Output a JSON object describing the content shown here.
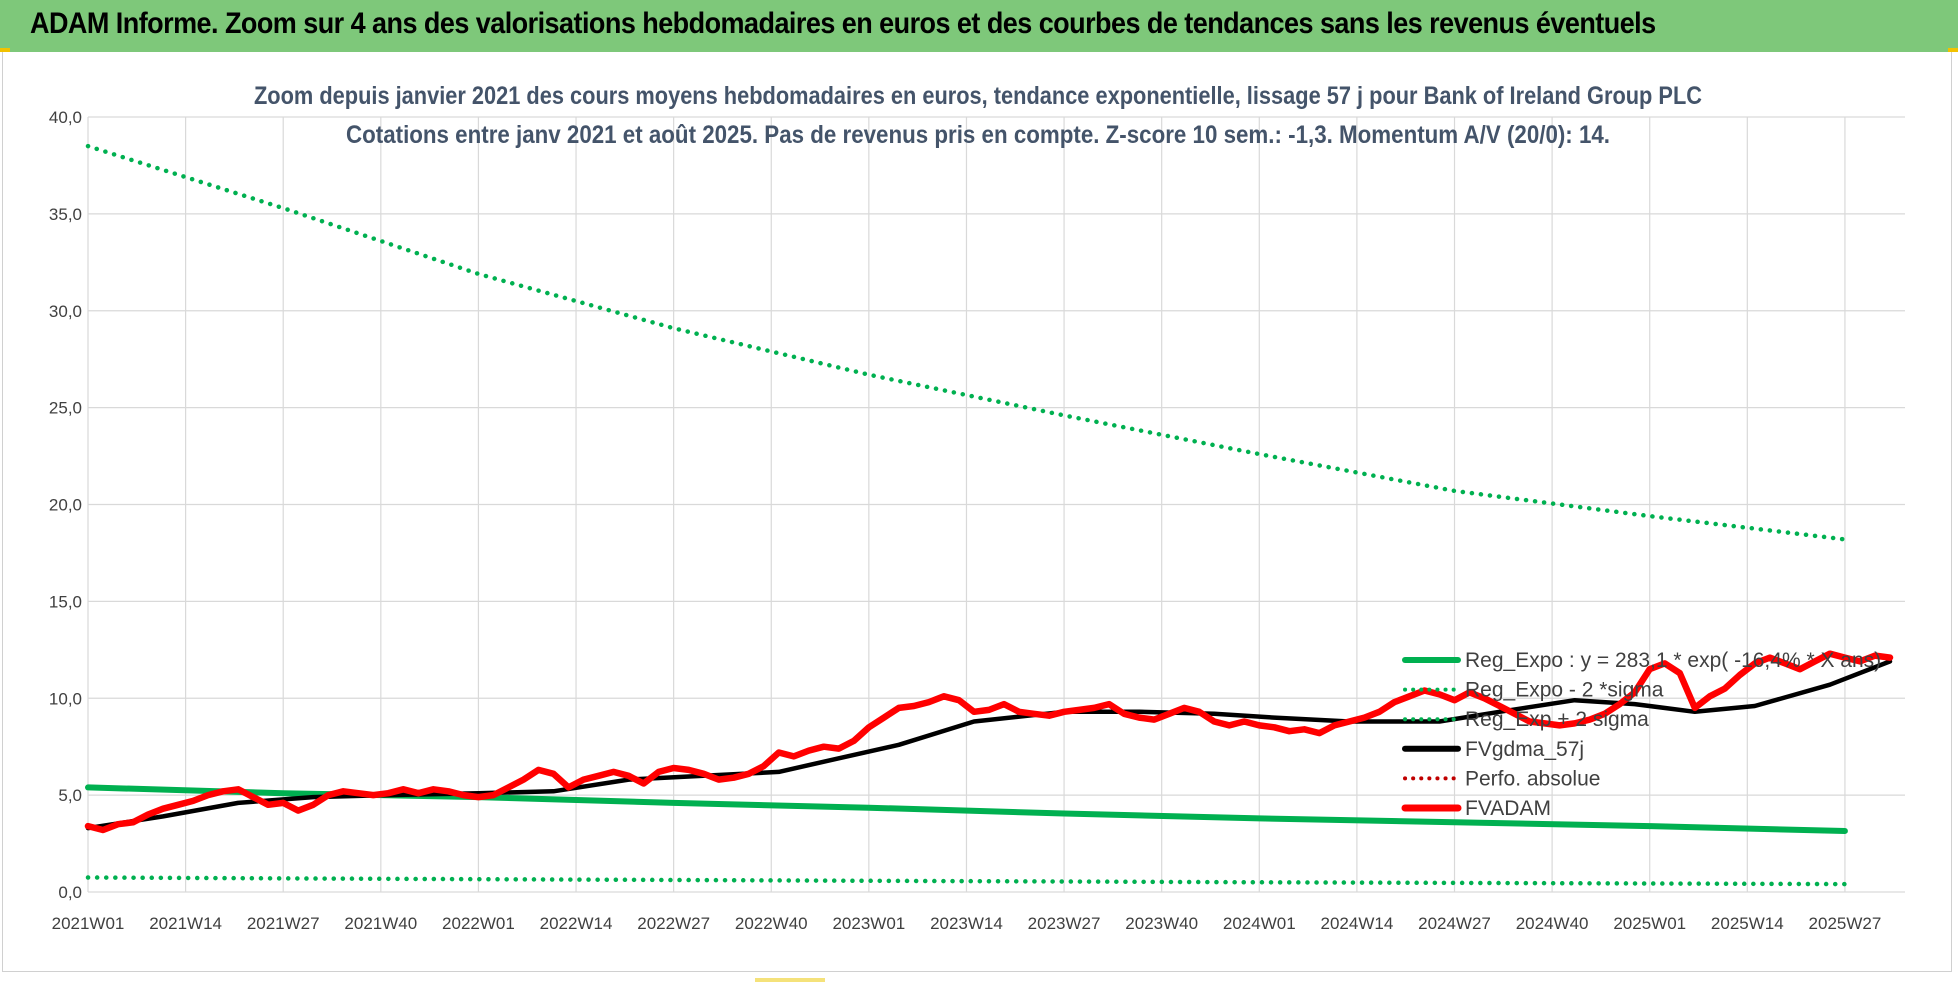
{
  "banner": {
    "title": "ADAM Informe. Zoom sur 4 ans des valorisations hebdomadaires en euros et des courbes de tendances sans les revenus éventuels"
  },
  "colors": {
    "banner_bg": "#7ec87a",
    "green": "#00b050",
    "red": "#ff0000",
    "black": "#000000",
    "dark_red_dots": "#c00000",
    "grid": "#d9d9d9",
    "title_text": "#44546a"
  },
  "chart_data": {
    "type": "line",
    "title_lines": [
      "Zoom depuis janvier 2021 des cours moyens hebdomadaires en euros, tendance exponentielle, lissage 57 j pour Bank of Ireland Group PLC",
      "Cotations entre janv 2021 et août 2025.  Pas de revenus pris en compte. Z-score 10 sem.: -1,3. Momentum A/V (20/0): 14."
    ],
    "xlabel": "",
    "ylabel": "",
    "ylim": [
      0,
      40
    ],
    "y_ticks": [
      "0,0",
      "5,0",
      "10,0",
      "15,0",
      "20,0",
      "25,0",
      "30,0",
      "35,0",
      "40,0"
    ],
    "x_ticks": [
      "2021W01",
      "2021W14",
      "2021W27",
      "2021W40",
      "2022W01",
      "2022W14",
      "2022W27",
      "2022W40",
      "2023W01",
      "2023W14",
      "2023W27",
      "2023W40",
      "2024W01",
      "2024W14",
      "2024W27",
      "2024W40",
      "2025W01",
      "2025W14",
      "2025W27"
    ],
    "grid": true,
    "legend_position": "bottom-right",
    "series": [
      {
        "name": "Reg_Expo : y = 283,1 * exp( -16,4% *  X ans)",
        "style": "solid",
        "color": "#00b050",
        "x": [
          0,
          26,
          52,
          78,
          104,
          130,
          156,
          182,
          208,
          234
        ],
        "values": [
          5.4,
          5.1,
          4.9,
          4.6,
          4.35,
          4.05,
          3.8,
          3.6,
          3.4,
          3.15
        ]
      },
      {
        "name": "Reg_Expo - 2 *sigma",
        "style": "dotted",
        "color": "#00b050",
        "x": [
          0,
          26,
          52,
          78,
          104,
          130,
          156,
          182,
          208,
          234
        ],
        "values": [
          0.75,
          0.7,
          0.66,
          0.62,
          0.58,
          0.54,
          0.5,
          0.47,
          0.44,
          0.41
        ]
      },
      {
        "name": "Reg_Exp + 2 sigma",
        "style": "dotted",
        "color": "#00b050",
        "x": [
          0,
          26,
          52,
          78,
          104,
          130,
          156,
          182,
          208,
          234
        ],
        "values": [
          38.5,
          35.3,
          31.9,
          29.1,
          26.7,
          24.6,
          22.6,
          20.7,
          19.4,
          18.2
        ]
      },
      {
        "name": "FVgdma_57j",
        "style": "solid",
        "color": "#000000",
        "x": [
          0,
          10,
          20,
          30,
          40,
          52,
          62,
          72,
          82,
          92,
          100,
          108,
          118,
          130,
          140,
          150,
          158,
          168,
          180,
          188,
          198,
          206,
          214,
          222,
          232,
          240
        ],
        "values": [
          3.3,
          3.9,
          4.6,
          4.9,
          5.0,
          5.1,
          5.2,
          5.8,
          6.0,
          6.2,
          6.9,
          7.6,
          8.8,
          9.3,
          9.3,
          9.2,
          9.0,
          8.8,
          8.8,
          9.3,
          9.9,
          9.7,
          9.3,
          9.6,
          10.7,
          11.9
        ]
      },
      {
        "name": "Perfo. absolue",
        "style": "dotted",
        "color": "#c00000",
        "x": [],
        "values": []
      },
      {
        "name": "FVADAM",
        "style": "solid",
        "color": "#ff0000",
        "x": [
          0,
          2,
          4,
          6,
          8,
          10,
          12,
          14,
          16,
          18,
          20,
          22,
          24,
          26,
          28,
          30,
          32,
          34,
          36,
          38,
          40,
          42,
          44,
          46,
          48,
          50,
          52,
          54,
          56,
          58,
          60,
          62,
          64,
          66,
          68,
          70,
          72,
          74,
          76,
          78,
          80,
          82,
          84,
          86,
          88,
          90,
          92,
          94,
          96,
          98,
          100,
          102,
          104,
          106,
          108,
          110,
          112,
          114,
          116,
          118,
          120,
          122,
          124,
          126,
          128,
          130,
          132,
          134,
          136,
          138,
          140,
          142,
          144,
          146,
          148,
          150,
          152,
          154,
          156,
          158,
          160,
          162,
          164,
          166,
          168,
          170,
          172,
          174,
          176,
          178,
          180,
          182,
          184,
          186,
          188,
          190,
          192,
          194,
          196,
          198,
          200,
          202,
          204,
          206,
          208,
          210,
          212,
          214,
          216,
          218,
          220,
          222,
          224,
          226,
          228,
          230,
          232,
          234,
          236,
          238,
          240
        ],
        "values": [
          3.4,
          3.2,
          3.5,
          3.6,
          4.0,
          4.3,
          4.5,
          4.7,
          5.0,
          5.2,
          5.3,
          4.9,
          4.5,
          4.6,
          4.2,
          4.5,
          5.0,
          5.2,
          5.1,
          5.0,
          5.1,
          5.3,
          5.1,
          5.3,
          5.2,
          5.0,
          4.9,
          5.0,
          5.4,
          5.8,
          6.3,
          6.1,
          5.4,
          5.8,
          6.0,
          6.2,
          6.0,
          5.6,
          6.2,
          6.4,
          6.3,
          6.1,
          5.8,
          5.9,
          6.1,
          6.5,
          7.2,
          7.0,
          7.3,
          7.5,
          7.4,
          7.8,
          8.5,
          9.0,
          9.5,
          9.6,
          9.8,
          10.1,
          9.9,
          9.3,
          9.4,
          9.7,
          9.3,
          9.2,
          9.1,
          9.3,
          9.4,
          9.5,
          9.7,
          9.2,
          9.0,
          8.9,
          9.2,
          9.5,
          9.3,
          8.8,
          8.6,
          8.8,
          8.6,
          8.5,
          8.3,
          8.4,
          8.2,
          8.6,
          8.8,
          9.0,
          9.3,
          9.8,
          10.1,
          10.4,
          10.2,
          9.9,
          10.3,
          10.0,
          9.6,
          9.2,
          8.8,
          8.7,
          8.6,
          8.7,
          8.9,
          9.2,
          9.7,
          10.3,
          11.5,
          11.8,
          11.3,
          9.5,
          10.1,
          10.5,
          11.2,
          11.8,
          12.1,
          11.8,
          11.5,
          11.9,
          12.3,
          12.1,
          11.9,
          12.2,
          12.1
        ]
      }
    ]
  }
}
